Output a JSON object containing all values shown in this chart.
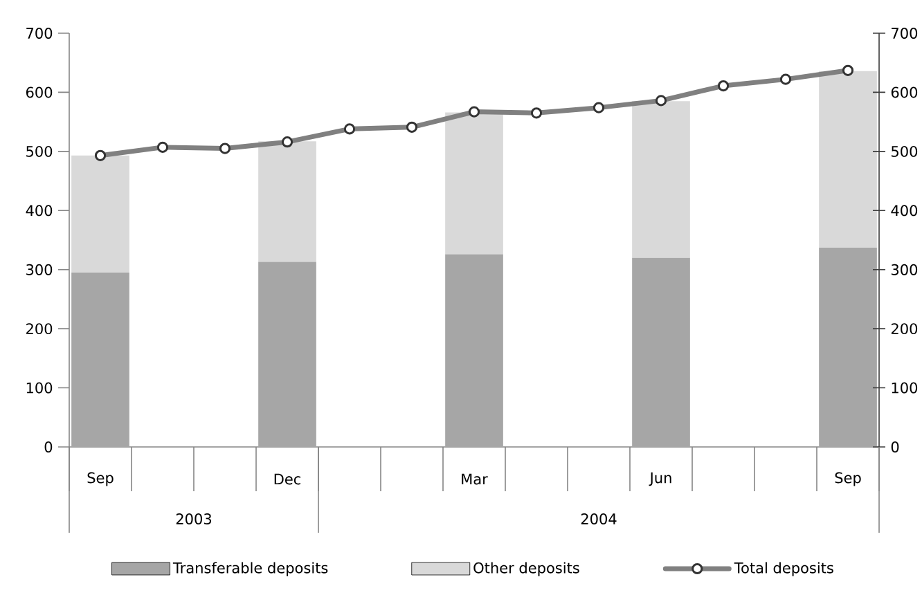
{
  "chart_data": {
    "type": "bar",
    "stacked": true,
    "categories": [
      "Sep",
      null,
      null,
      "Dec",
      null,
      null,
      "Mar",
      null,
      null,
      "Jun",
      null,
      null,
      "Sep"
    ],
    "series": [
      {
        "name": "Transferable deposits",
        "color": "#a6a6a6",
        "values": [
          295,
          null,
          null,
          313,
          null,
          null,
          326,
          null,
          null,
          320,
          null,
          null,
          337
        ]
      },
      {
        "name": "Other deposits",
        "color": "#d9d9d9",
        "values": [
          198,
          null,
          null,
          204,
          null,
          null,
          240,
          null,
          null,
          265,
          null,
          null,
          299
        ]
      },
      {
        "name": "Total deposits",
        "type": "line",
        "axis": "y2",
        "color": "#808080",
        "marker": "circle",
        "line_style": "solid",
        "values": [
          493,
          507,
          505,
          516,
          538,
          541,
          567,
          565,
          574,
          586,
          611,
          622,
          637
        ]
      }
    ],
    "ylim": [
      0,
      700
    ],
    "yticks": [
      0,
      100,
      200,
      300,
      400,
      500,
      600,
      700
    ],
    "y2lim": [
      0,
      700
    ],
    "y2ticks": [
      0,
      100,
      200,
      300,
      400,
      500,
      600,
      700
    ],
    "annotations": [
      "2003",
      "2004"
    ],
    "legend": "bottom"
  }
}
